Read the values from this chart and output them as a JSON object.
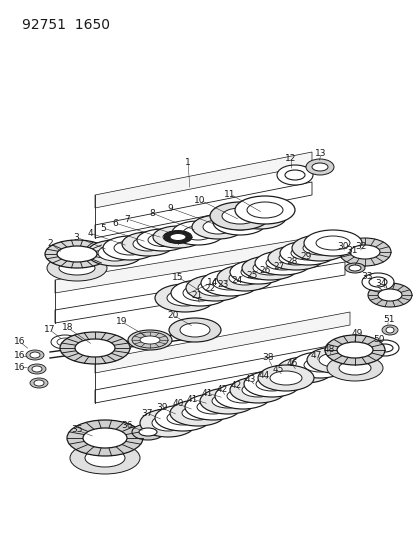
{
  "title": "92751  1650",
  "bg_color": "#ffffff",
  "line_color": "#1a1a1a",
  "title_fontsize": 10,
  "label_fontsize": 6.5,
  "figsize": [
    4.14,
    5.33
  ],
  "dpi": 100
}
